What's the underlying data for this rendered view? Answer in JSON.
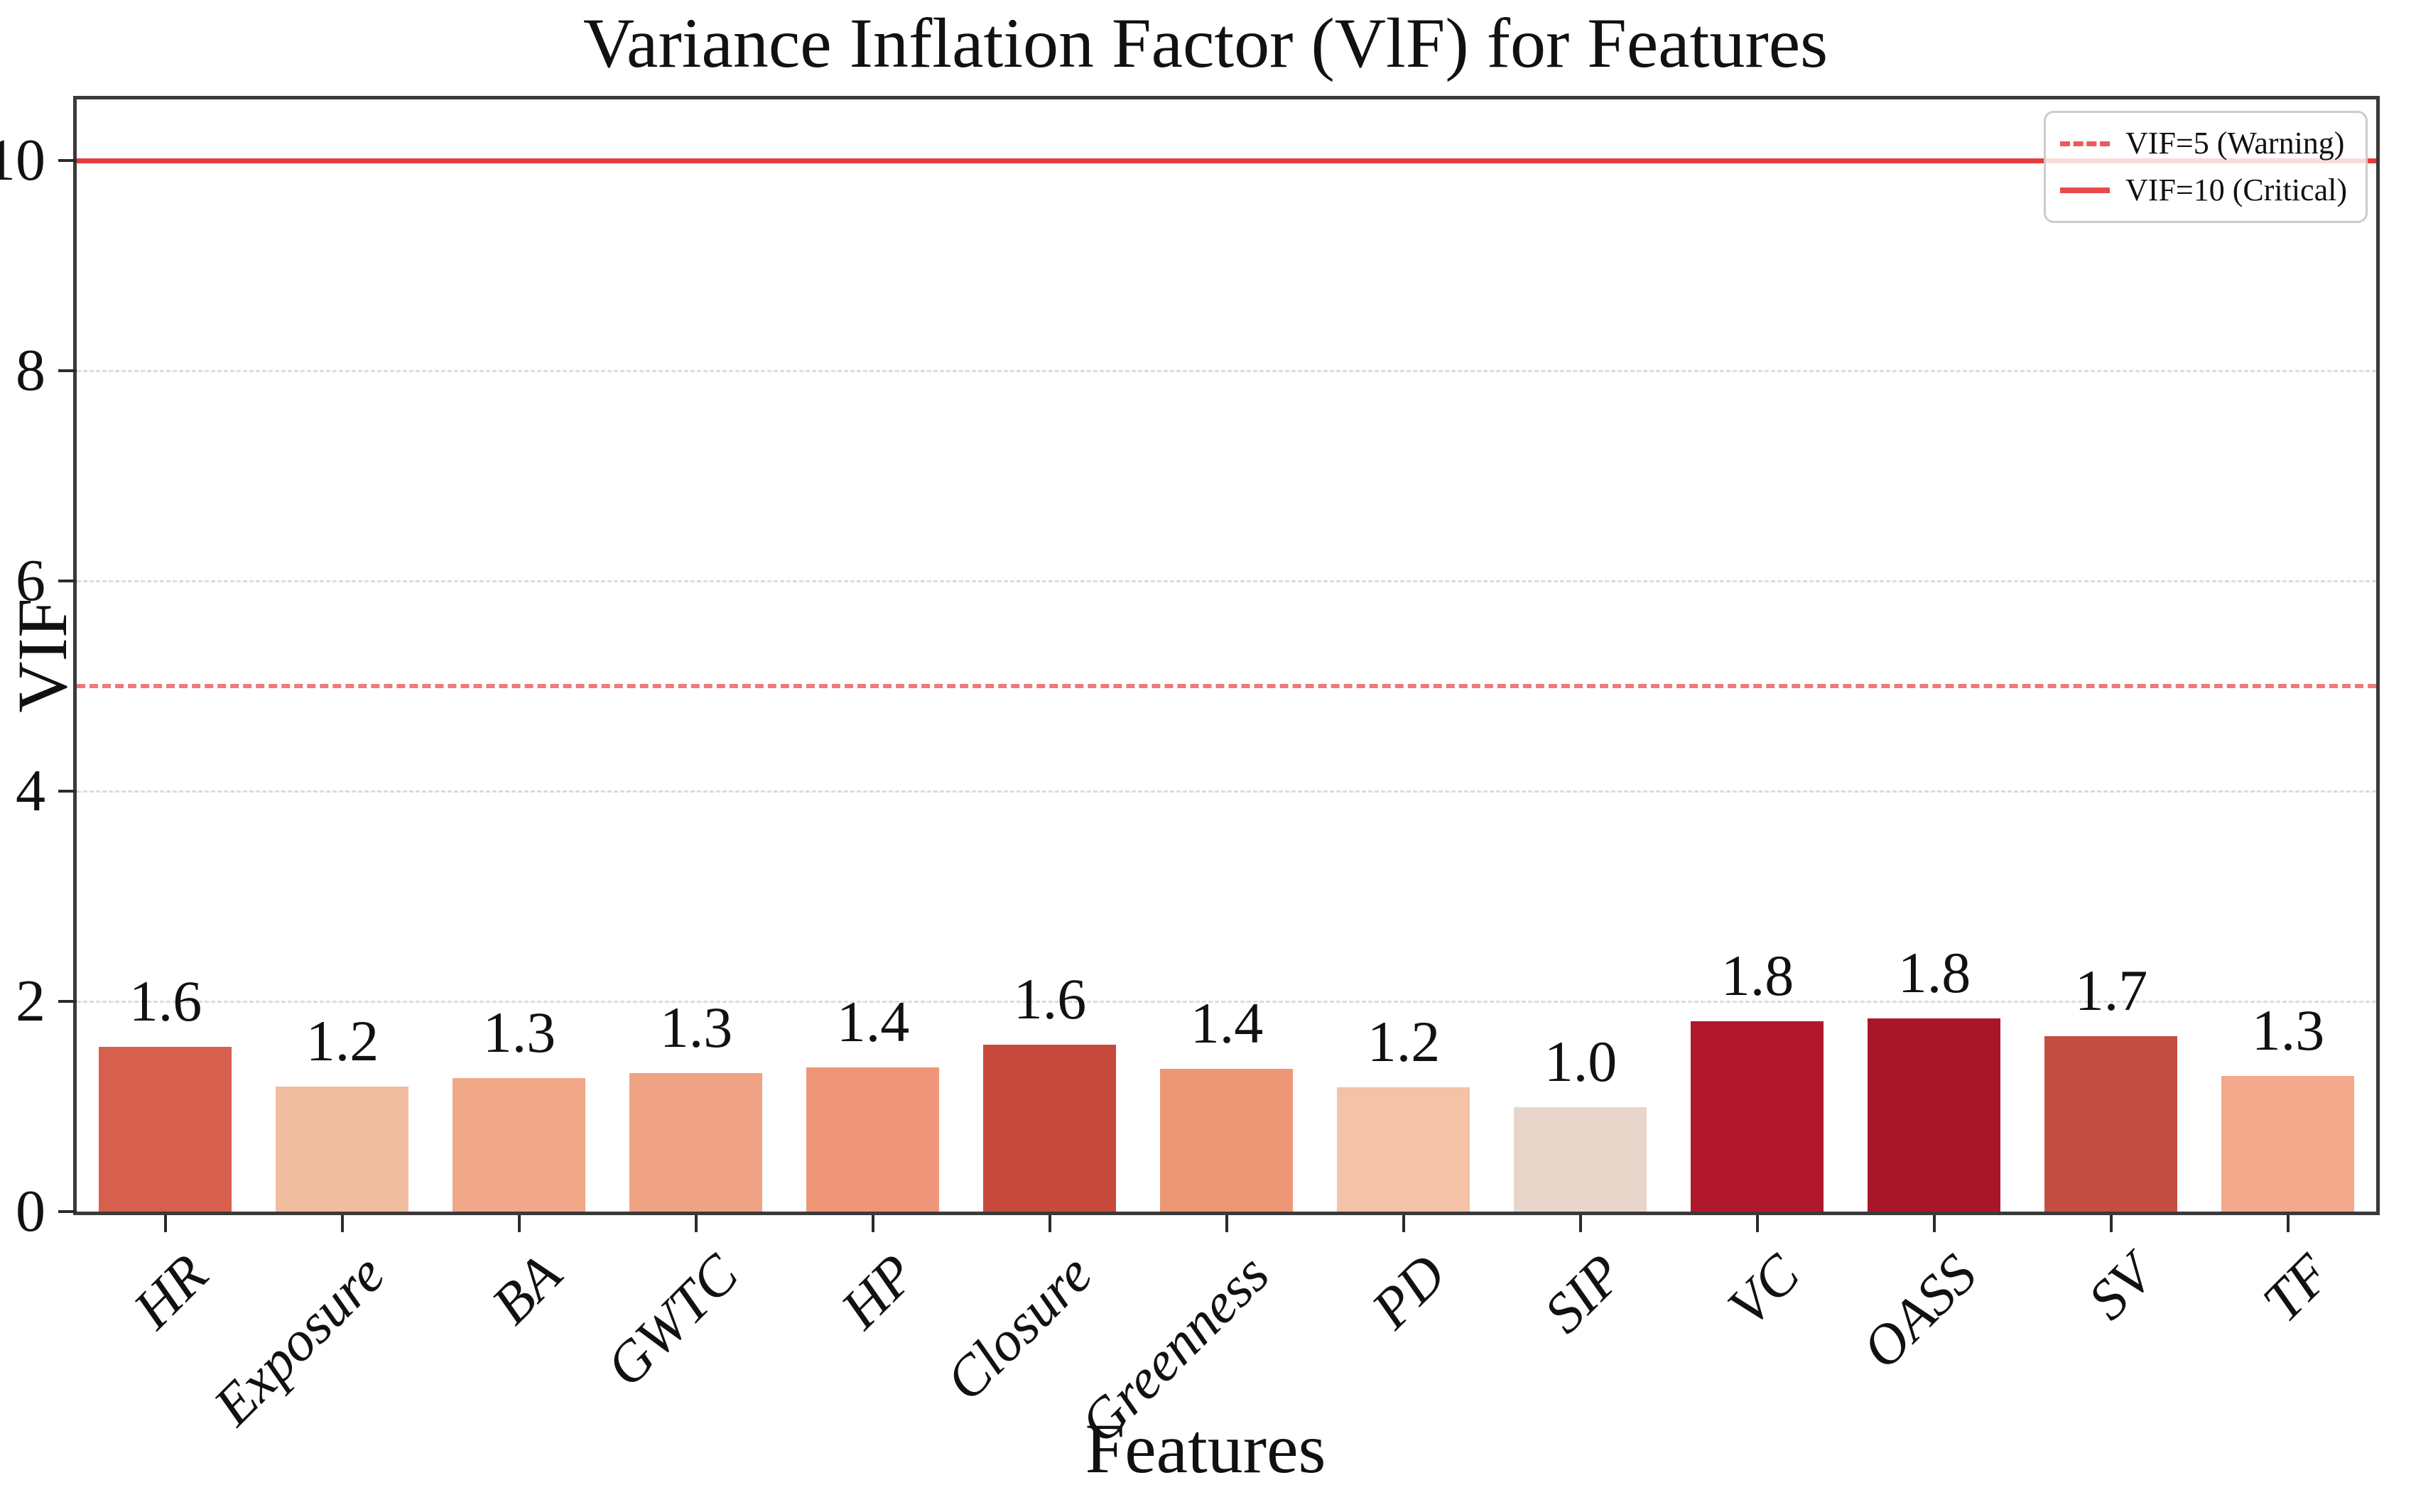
{
  "title": "Variance Inflation Factor (VlF) for Features",
  "x_axis": {
    "label": "Features"
  },
  "y_axis": {
    "label": "VIF"
  },
  "legend": {
    "items": [
      {
        "label": "VIF=5 (Warning)",
        "line_style": "dashed"
      },
      {
        "label": "VIF=10 (Critical)",
        "line_style": "solid"
      }
    ]
  },
  "colors": {
    "critical_line": "#e63b3c",
    "warning_line": "#f0797b",
    "grid": "#dcdcdc",
    "spine": "#3a3a3a"
  },
  "chart_data": {
    "type": "bar",
    "title": "Variance Inflation Factor (VlF) for Features",
    "xlabel": "Features",
    "ylabel": "VIF",
    "categories": [
      "HR",
      "Exposure",
      "BA",
      "GWTC",
      "HP",
      "Closure",
      "Greenness",
      "PD",
      "SIP",
      "VC",
      "OASS",
      "SV",
      "TF"
    ],
    "values": [
      1.57,
      1.19,
      1.27,
      1.32,
      1.37,
      1.59,
      1.36,
      1.18,
      0.99,
      1.81,
      1.84,
      1.67,
      1.29
    ],
    "bar_labels": [
      "1.6",
      "1.2",
      "1.3",
      "1.3",
      "1.4",
      "1.6",
      "1.4",
      "1.2",
      "1.0",
      "1.8",
      "1.8",
      "1.7",
      "1.3"
    ],
    "bar_colors": [
      "#d6604d",
      "#f1bda1",
      "#f1a889",
      "#f0a285",
      "#ee9677",
      "#c7493b",
      "#ee9777",
      "#f4c2a6",
      "#e8d6ca",
      "#b2182b",
      "#aa1629",
      "#c44e42",
      "#f2a98c"
    ],
    "y_ticks": [
      0,
      2,
      4,
      6,
      8,
      10
    ],
    "grid_values": [
      2,
      4,
      6,
      8
    ],
    "reference_lines": [
      {
        "value": 5,
        "style": "dashed",
        "label": "VIF=5 (Warning)"
      },
      {
        "value": 10,
        "style": "solid",
        "label": "VIF=10 (Critical)"
      }
    ],
    "ylim": [
      0,
      10.58
    ],
    "grid": "horizontal dashed",
    "legend_position": "upper right"
  }
}
